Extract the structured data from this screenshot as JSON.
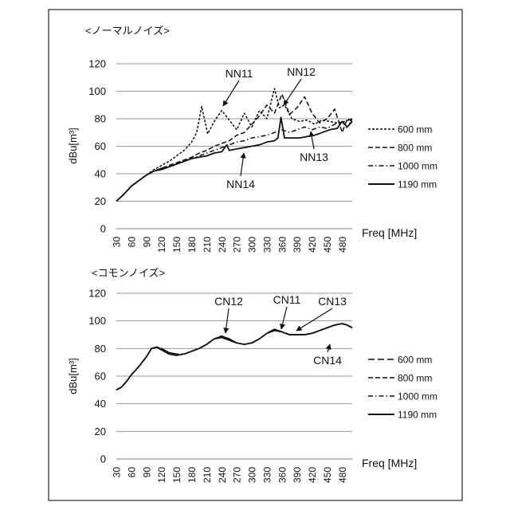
{
  "chart_data": [
    {
      "type": "line",
      "title": "<ノーマルノイズ>",
      "xlabel": "Freq [MHz]",
      "ylabel": "dBu[m³]",
      "xlim": [
        30,
        500
      ],
      "ylim": [
        0,
        120
      ],
      "yticks": [
        0,
        20,
        40,
        60,
        80,
        100,
        120
      ],
      "xticks": [
        30,
        60,
        90,
        120,
        150,
        180,
        210,
        240,
        270,
        300,
        330,
        360,
        390,
        420,
        450,
        480
      ],
      "grid": "horizontal",
      "legend_position": "right",
      "series": [
        {
          "name": "600 mm",
          "style": "short-dash",
          "x": [
            30,
            45,
            60,
            75,
            90,
            105,
            120,
            135,
            150,
            165,
            180,
            190,
            200,
            212,
            225,
            240,
            255,
            270,
            285,
            300,
            315,
            330,
            345,
            355,
            365,
            380,
            395,
            410,
            425,
            440,
            455,
            470,
            485,
            500
          ],
          "y": [
            20,
            25,
            31,
            35,
            39,
            43,
            46,
            49,
            53,
            57,
            63,
            70,
            89,
            69,
            78,
            86,
            79,
            72,
            84,
            74,
            86,
            80,
            102,
            88,
            90,
            80,
            78,
            79,
            76,
            79,
            78,
            77,
            78,
            80
          ]
        },
        {
          "name": "800 mm",
          "style": "dash",
          "x": [
            30,
            45,
            60,
            75,
            90,
            105,
            120,
            135,
            150,
            165,
            180,
            195,
            210,
            225,
            240,
            255,
            270,
            285,
            300,
            315,
            330,
            345,
            360,
            375,
            390,
            405,
            420,
            435,
            450,
            465,
            480,
            490,
            500
          ],
          "y": [
            20,
            25,
            31,
            35,
            39,
            42,
            44,
            46,
            48,
            50,
            52,
            55,
            57,
            60,
            62,
            64,
            68,
            70,
            76,
            82,
            90,
            84,
            98,
            83,
            88,
            96,
            84,
            77,
            80,
            87,
            70,
            80,
            78
          ]
        },
        {
          "name": "1000 mm",
          "style": "dash-dot",
          "x": [
            30,
            45,
            60,
            75,
            90,
            105,
            120,
            135,
            150,
            165,
            180,
            195,
            210,
            225,
            240,
            255,
            270,
            285,
            300,
            315,
            330,
            345,
            360,
            375,
            390,
            405,
            420,
            435,
            450,
            465,
            480,
            490,
            500
          ],
          "y": [
            20,
            25,
            31,
            35,
            39,
            42,
            44,
            45,
            47,
            49,
            51,
            53,
            55,
            57,
            59,
            61,
            63,
            64,
            66,
            67,
            68,
            70,
            72,
            70,
            72,
            74,
            72,
            74,
            73,
            76,
            78,
            73,
            80
          ]
        },
        {
          "name": "1190 mm",
          "style": "solid",
          "x": [
            30,
            45,
            60,
            75,
            90,
            105,
            120,
            135,
            150,
            165,
            180,
            195,
            210,
            225,
            240,
            250,
            255,
            270,
            285,
            300,
            315,
            330,
            345,
            352,
            358,
            365,
            380,
            395,
            410,
            425,
            440,
            455,
            470,
            480,
            490,
            500
          ],
          "y": [
            20,
            25,
            31,
            35,
            39,
            42,
            43,
            45,
            47,
            49,
            51,
            52,
            53,
            55,
            56,
            61,
            57,
            58,
            59,
            60,
            61,
            63,
            64,
            66,
            81,
            66,
            66,
            66,
            67,
            68,
            70,
            72,
            73,
            78,
            74,
            78
          ]
        }
      ],
      "annotations": [
        {
          "text": "NN11",
          "x": 240,
          "y": 84
        },
        {
          "text": "NN12",
          "x": 355,
          "y": 92
        },
        {
          "text": "NN13",
          "x": 418,
          "y": 72
        },
        {
          "text": "NN14",
          "x": 255,
          "y": 56
        }
      ]
    },
    {
      "type": "line",
      "title": "<コモンノイズ>",
      "xlabel": "Freq [MHz]",
      "ylabel": "dBu[m³]",
      "xlim": [
        30,
        500
      ],
      "ylim": [
        0,
        120
      ],
      "yticks": [
        0,
        20,
        40,
        60,
        80,
        100,
        120
      ],
      "xticks": [
        30,
        60,
        90,
        120,
        150,
        180,
        210,
        240,
        270,
        300,
        330,
        360,
        390,
        420,
        450,
        480
      ],
      "grid": "horizontal",
      "legend_position": "right",
      "series": [
        {
          "name": "600 mm",
          "style": "long-dash",
          "x": [
            30,
            40,
            50,
            60,
            75,
            90,
            100,
            110,
            120,
            135,
            150,
            165,
            180,
            195,
            210,
            225,
            240,
            255,
            270,
            285,
            300,
            315,
            330,
            345,
            360,
            375,
            390,
            405,
            420,
            435,
            450,
            465,
            480,
            490,
            500
          ],
          "y": [
            50,
            52,
            56,
            61,
            67,
            74,
            80,
            81,
            80,
            77,
            76,
            76,
            78,
            80,
            83,
            87,
            89,
            87,
            84,
            83,
            84,
            87,
            91,
            94,
            92,
            90,
            90,
            90,
            91,
            93,
            95,
            97,
            98,
            97,
            95
          ]
        },
        {
          "name": "800 mm",
          "style": "dash",
          "x": [
            30,
            40,
            50,
            60,
            75,
            90,
            100,
            110,
            120,
            135,
            150,
            165,
            180,
            195,
            210,
            225,
            240,
            255,
            270,
            285,
            300,
            315,
            330,
            345,
            360,
            375,
            390,
            405,
            420,
            435,
            450,
            465,
            480,
            490,
            500
          ],
          "y": [
            50,
            52,
            56,
            61,
            67,
            74,
            80,
            81,
            80,
            77,
            76,
            76,
            78,
            80,
            83,
            87,
            89,
            87,
            84,
            83,
            84,
            87,
            91,
            94,
            92,
            90,
            90,
            90,
            91,
            93,
            95,
            97,
            98,
            97,
            95
          ]
        },
        {
          "name": "1000 mm",
          "style": "dash-dot",
          "x": [
            30,
            40,
            50,
            60,
            75,
            90,
            100,
            110,
            120,
            135,
            150,
            165,
            180,
            195,
            210,
            225,
            240,
            255,
            270,
            285,
            300,
            315,
            330,
            345,
            360,
            375,
            390,
            405,
            420,
            435,
            450,
            465,
            480,
            490,
            500
          ],
          "y": [
            50,
            52,
            56,
            61,
            67,
            74,
            80,
            81,
            80,
            77,
            76,
            76,
            78,
            80,
            83,
            87,
            89,
            87,
            84,
            83,
            84,
            87,
            91,
            94,
            92,
            90,
            90,
            90,
            91,
            93,
            95,
            97,
            98,
            97,
            95
          ]
        },
        {
          "name": "1190 mm",
          "style": "solid",
          "x": [
            30,
            40,
            50,
            60,
            75,
            90,
            100,
            110,
            120,
            135,
            150,
            165,
            180,
            195,
            210,
            225,
            240,
            255,
            270,
            285,
            300,
            315,
            330,
            345,
            360,
            375,
            390,
            405,
            420,
            435,
            450,
            465,
            480,
            490,
            500
          ],
          "y": [
            50,
            52,
            56,
            61,
            67,
            74,
            80,
            81,
            79,
            76,
            75,
            76,
            78,
            80,
            83,
            87,
            88,
            86,
            84,
            83,
            84,
            87,
            91,
            93,
            92,
            90,
            90,
            90,
            91,
            93,
            95,
            97,
            98,
            97,
            95
          ]
        }
      ],
      "annotations": [
        {
          "text": "CN12",
          "x": 243,
          "y": 90
        },
        {
          "text": "CN11",
          "x": 360,
          "y": 93
        },
        {
          "text": "CN13",
          "x": 388,
          "y": 91
        },
        {
          "text": "CN14",
          "x": 430,
          "y": 95
        }
      ]
    }
  ]
}
